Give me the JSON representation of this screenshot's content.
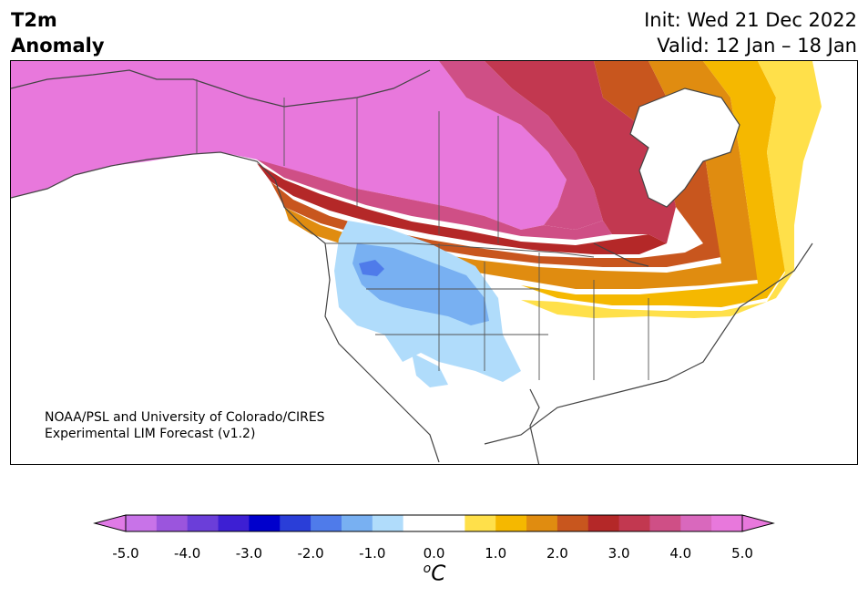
{
  "header": {
    "title_lines": [
      "T2m",
      "Anomaly"
    ],
    "init_label": "Init: Wed 21 Dec 2022",
    "valid_label": "Valid: 12 Jan – 18 Jan"
  },
  "credit_lines": [
    "NOAA/PSL and University of Colorado/CIRES",
    "Experimental LIM Forecast (v1.2)"
  ],
  "colorbar": {
    "ticks": [
      "-5.0",
      "-4.0",
      "-3.0",
      "-2.0",
      "-1.0",
      "0.0",
      "1.0",
      "2.0",
      "3.0",
      "4.0",
      "5.0"
    ],
    "unit_base": "C",
    "unit_sup": "o",
    "colors": [
      "#c873e8",
      "#9b55dd",
      "#6b3ed9",
      "#3d1fd3",
      "#0000cc",
      "#2a3ed8",
      "#4f7bea",
      "#78b0f2",
      "#b0dcfb",
      "#ffffff",
      "#ffffff",
      "#ffe04a",
      "#f5b800",
      "#e08c10",
      "#c8561e",
      "#b42828",
      "#c23850",
      "#cf4f86",
      "#d968bd",
      "#e878dc"
    ],
    "under_color": "#e07ae6",
    "over_color": "#e878dc"
  },
  "map": {
    "region": "North America",
    "variable": "2 m temperature anomaly"
  }
}
